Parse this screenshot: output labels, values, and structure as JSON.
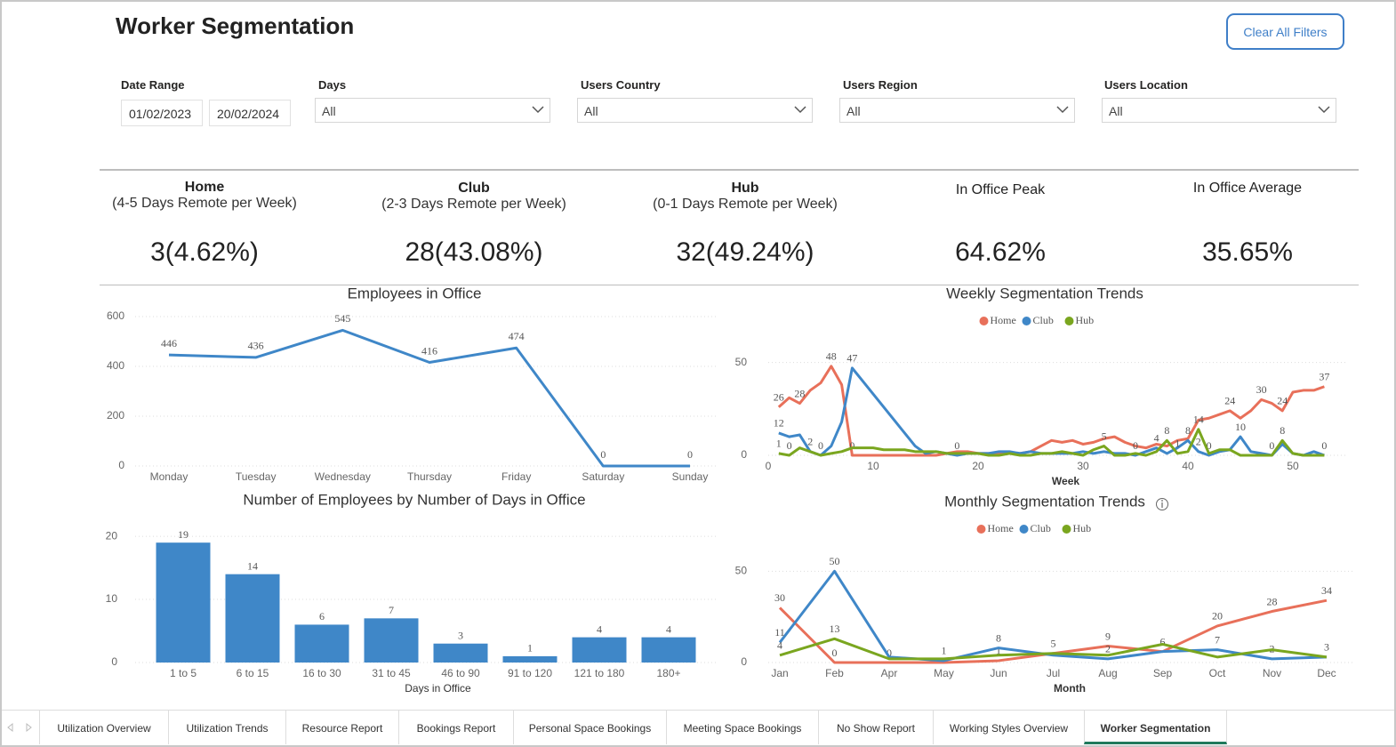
{
  "header": {
    "title": "Worker Segmentation",
    "button": "Clear All Filters"
  },
  "filters": [
    {
      "label": "Date Range",
      "values": [
        "01/02/2023",
        "20/02/2024"
      ]
    },
    {
      "label": "Days",
      "value": "All"
    },
    {
      "label": "Users Country",
      "value": "All"
    },
    {
      "label": "Users Region",
      "value": "All"
    },
    {
      "label": "Users Location",
      "value": "All"
    }
  ],
  "kpis": [
    {
      "title": "Home",
      "subtitle": "(4-5 Days Remote per Week)",
      "value": "3(4.62%)"
    },
    {
      "title": "Club",
      "subtitle": "(2-3 Days Remote per Week)",
      "value": "28(43.08%)"
    },
    {
      "title": "Hub",
      "subtitle": "(0-1 Days Remote per Week)",
      "value": "32(49.24%)"
    },
    {
      "title": "In Office Peak",
      "value": "64.62%"
    },
    {
      "title": "In Office Average",
      "value": "35.65%"
    }
  ],
  "chart_data": [
    {
      "type": "line",
      "title": "Employees in Office",
      "categories": [
        "Monday",
        "Tuesday",
        "Wednesday",
        "Thursday",
        "Friday",
        "Saturday",
        "Sunday"
      ],
      "values": [
        446,
        436,
        545,
        416,
        474,
        0,
        0
      ],
      "color": "#3f87c8",
      "ylim": [
        0,
        600
      ],
      "yticks": [
        0,
        200,
        400,
        600
      ],
      "grid": true,
      "data_labels": true
    },
    {
      "type": "bar",
      "title": "Number of Employees by Number of Days in Office",
      "x_label": "Days in Office",
      "categories": [
        "1 to 5",
        "6 to 15",
        "16 to 30",
        "31 to 45",
        "46 to 90",
        "91 to 120",
        "121 to 180",
        "180+"
      ],
      "values": [
        19,
        14,
        6,
        7,
        3,
        1,
        4,
        4
      ],
      "color": "#3f87c8",
      "ylim": [
        0,
        21
      ],
      "yticks": [
        0,
        10,
        20
      ],
      "grid": true,
      "data_labels": true
    },
    {
      "type": "line",
      "title": "Weekly Segmentation Trends",
      "x_label": "Week",
      "legend": "top",
      "grid": true,
      "x": [
        1,
        2,
        3,
        4,
        5,
        6,
        7,
        8,
        9,
        10,
        11,
        12,
        13,
        14,
        15,
        16,
        17,
        18,
        19,
        20,
        21,
        22,
        23,
        24,
        25,
        26,
        27,
        28,
        29,
        30,
        31,
        32,
        33,
        34,
        35,
        36,
        37,
        38,
        39,
        40,
        41,
        42,
        43,
        44,
        45,
        46,
        47,
        48,
        49,
        50,
        51,
        52,
        53
      ],
      "xlim": [
        0,
        55
      ],
      "xticks": [
        0,
        10,
        20,
        30,
        40,
        50
      ],
      "ylim": [
        0,
        57
      ],
      "yticks": [
        0,
        50
      ],
      "series": [
        {
          "name": "Home",
          "color": "#e8705a",
          "values": [
            26,
            31,
            28,
            35,
            39,
            48,
            38,
            0,
            0,
            0,
            0,
            0,
            0,
            0,
            0,
            0,
            1,
            2,
            2,
            1,
            1,
            1,
            1,
            1,
            2,
            5,
            8,
            7,
            8,
            6,
            7,
            9,
            10,
            7,
            5,
            4,
            6,
            5,
            8,
            9,
            19,
            20,
            22,
            24,
            20,
            24,
            30,
            28,
            24,
            34,
            35,
            35,
            37
          ],
          "value_labels": [
            "26",
            null,
            "28",
            null,
            null,
            "48",
            null,
            "0",
            null,
            null,
            null,
            null,
            null,
            null,
            null,
            null,
            null,
            null,
            null,
            null,
            null,
            null,
            null,
            null,
            null,
            null,
            null,
            null,
            null,
            null,
            null,
            null,
            null,
            null,
            null,
            null,
            null,
            null,
            null,
            null,
            null,
            null,
            null,
            "24",
            null,
            null,
            "30",
            null,
            "24",
            null,
            null,
            null,
            "37"
          ]
        },
        {
          "name": "Club",
          "color": "#3f87c8",
          "values": [
            12,
            10,
            11,
            2,
            0,
            5,
            18,
            47,
            40,
            33,
            26,
            19,
            12,
            5,
            1,
            2,
            1,
            0,
            1,
            1,
            1,
            2,
            2,
            1,
            2,
            1,
            1,
            1,
            1,
            2,
            1,
            2,
            1,
            1,
            0,
            2,
            4,
            1,
            4,
            8,
            2,
            0,
            2,
            3,
            10,
            2,
            1,
            0,
            6,
            1,
            0,
            2,
            0
          ],
          "value_labels": [
            "12",
            null,
            null,
            "2",
            "0",
            null,
            null,
            "47",
            null,
            null,
            null,
            null,
            null,
            null,
            null,
            null,
            null,
            "0",
            null,
            null,
            null,
            null,
            null,
            null,
            null,
            null,
            null,
            null,
            null,
            null,
            null,
            null,
            null,
            null,
            "0",
            null,
            "4",
            null,
            null,
            "8",
            "2",
            "0",
            null,
            null,
            "10",
            null,
            null,
            "0",
            null,
            null,
            null,
            null,
            "0"
          ]
        },
        {
          "name": "Hub",
          "color": "#7aa61f",
          "values": [
            1,
            0,
            4,
            2,
            0,
            1,
            2,
            4,
            4,
            4,
            3,
            3,
            3,
            2,
            2,
            2,
            1,
            1,
            1,
            1,
            0,
            0,
            1,
            0,
            0,
            1,
            1,
            2,
            1,
            0,
            3,
            5,
            0,
            0,
            1,
            0,
            2,
            8,
            1,
            2,
            14,
            1,
            3,
            3,
            0,
            0,
            0,
            0,
            8,
            1,
            0,
            0,
            0
          ],
          "value_labels": [
            "1",
            "0",
            null,
            null,
            null,
            null,
            null,
            null,
            null,
            null,
            null,
            null,
            null,
            null,
            null,
            null,
            null,
            null,
            null,
            null,
            null,
            null,
            null,
            null,
            null,
            null,
            null,
            null,
            null,
            null,
            null,
            "5",
            null,
            null,
            null,
            null,
            null,
            "8",
            "1",
            null,
            "14",
            null,
            null,
            null,
            null,
            null,
            null,
            null,
            "8",
            null,
            null,
            null,
            null
          ]
        }
      ]
    },
    {
      "type": "line",
      "title": "Monthly Segmentation Trends",
      "x_label": "Month",
      "legend": "top",
      "grid": true,
      "categories": [
        "Jan",
        "Feb",
        "Apr",
        "May",
        "Jun",
        "Jul",
        "Aug",
        "Sep",
        "Oct",
        "Nov",
        "Dec"
      ],
      "ylim": [
        0,
        57
      ],
      "yticks": [
        0,
        50
      ],
      "series": [
        {
          "name": "Home",
          "color": "#e8705a",
          "values": [
            30,
            0,
            0,
            0,
            1,
            5,
            9,
            6,
            20,
            28,
            34
          ],
          "value_labels": [
            "30",
            "0",
            "0",
            null,
            "1",
            "5",
            "9",
            "6",
            "20",
            "28",
            "34"
          ]
        },
        {
          "name": "Club",
          "color": "#3f87c8",
          "values": [
            11,
            50,
            3,
            1,
            8,
            4,
            2,
            6,
            7,
            2,
            3
          ],
          "value_labels": [
            "11",
            "50",
            null,
            "1",
            "8",
            null,
            "2",
            null,
            "7",
            "2",
            "3"
          ]
        },
        {
          "name": "Hub",
          "color": "#7aa61f",
          "values": [
            4,
            13,
            2,
            2,
            4,
            5,
            4,
            10,
            3,
            7,
            3
          ],
          "value_labels": [
            "4",
            "13",
            null,
            null,
            null,
            null,
            null,
            null,
            null,
            null,
            null
          ]
        }
      ]
    }
  ],
  "tabs": [
    "Utilization Overview",
    "Utilization Trends",
    "Resource Report",
    "Bookings Report",
    "Personal Space Bookings",
    "Meeting Space Bookings",
    "No Show Report",
    "Working Styles Overview",
    "Worker Segmentation"
  ],
  "active_tab": 8
}
